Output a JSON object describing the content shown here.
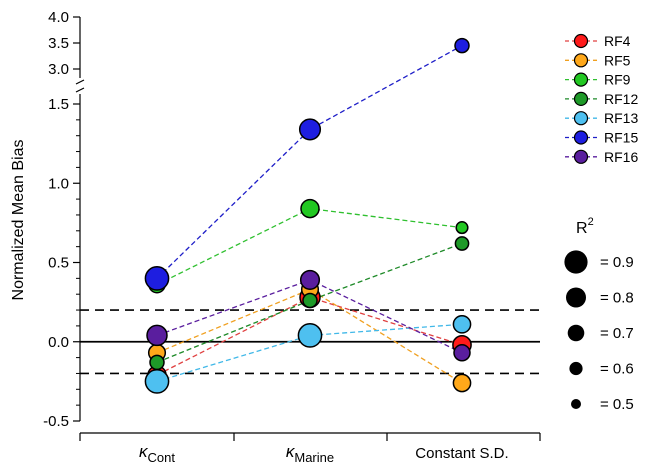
{
  "chart_data": {
    "type": "scatter",
    "ylabel": "Normalized Mean Bias",
    "categories": [
      {
        "symbol": "κ",
        "sub": "Cont"
      },
      {
        "symbol": "κ",
        "sub": "Marine"
      },
      {
        "symbol": "",
        "sub": "Constant S.D."
      }
    ],
    "y_axis": {
      "lower_range": [
        -0.5,
        1.5
      ],
      "upper_range": [
        2.8,
        4.0
      ],
      "axis_break": true,
      "lower_ticks": [
        "-0.5",
        "0.0",
        "0.5",
        "1.0",
        "1.5"
      ],
      "upper_ticks": [
        "3.0",
        "3.5",
        "4.0"
      ]
    },
    "reference_lines": [
      {
        "y": 0.0,
        "style": "solid"
      },
      {
        "y": 0.2,
        "style": "dashed"
      },
      {
        "y": -0.2,
        "style": "dashed"
      }
    ],
    "series": [
      {
        "name": "RF4",
        "color": "#ff1a1a",
        "line_color": "#e04040",
        "values": [
          -0.21,
          0.28,
          -0.02
        ],
        "r2": [
          0.74,
          0.8,
          0.75
        ]
      },
      {
        "name": "RF5",
        "color": "#ffa81a",
        "line_color": "#f0a020",
        "values": [
          -0.07,
          0.33,
          -0.26
        ],
        "r2": [
          0.7,
          0.7,
          0.72
        ]
      },
      {
        "name": "RF9",
        "color": "#22c822",
        "line_color": "#30c030",
        "values": [
          0.36,
          0.84,
          0.72
        ],
        "r2": [
          0.68,
          0.74,
          0.55
        ]
      },
      {
        "name": "RF12",
        "color": "#1e9a28",
        "line_color": "#1e8a28",
        "values": [
          -0.13,
          0.26,
          0.62
        ],
        "r2": [
          0.62,
          0.62,
          0.6
        ]
      },
      {
        "name": "RF13",
        "color": "#4ec0f0",
        "line_color": "#40b8e8",
        "values": [
          -0.25,
          0.04,
          0.11
        ],
        "r2": [
          0.9,
          0.9,
          0.72
        ]
      },
      {
        "name": "RF15",
        "color": "#1e1ee0",
        "line_color": "#1e1ec8",
        "values": [
          0.4,
          1.34,
          3.45
        ],
        "r2": [
          0.9,
          0.82,
          0.62
        ]
      },
      {
        "name": "RF16",
        "color": "#5a1e9e",
        "line_color": "#5a1e9e",
        "values": [
          0.04,
          0.39,
          -0.07
        ],
        "r2": [
          0.8,
          0.76,
          0.68
        ]
      }
    ],
    "size_legend": {
      "title_base": "R",
      "title_sup": "2",
      "entries": [
        {
          "r2": 0.9,
          "label": "= 0.9"
        },
        {
          "r2": 0.8,
          "label": "= 0.8"
        },
        {
          "r2": 0.7,
          "label": "= 0.7"
        },
        {
          "r2": 0.6,
          "label": "= 0.6"
        },
        {
          "r2": 0.5,
          "label": "= 0.5"
        }
      ]
    }
  }
}
